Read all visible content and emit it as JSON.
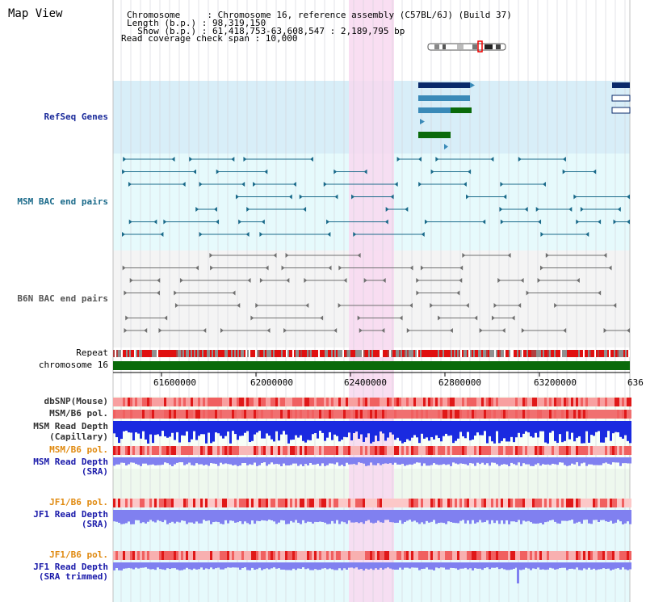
{
  "title": "Map View",
  "info": {
    "line1": "Chromosome     : Chromosome 16, reference assembly (C57BL/6J) (Build 37)",
    "line2": "Length (b.p.) : 98,319,150",
    "line3": "  Show (b.p.) : 61,418,753-63,608,547 : 2,189,795 bp",
    "line4": "Read coverage check span : 10,000"
  },
  "tracks": {
    "refseq": "RefSeq Genes",
    "msm_bac": "MSM BAC end pairs",
    "b6n_bac": "B6N BAC end pairs",
    "repeat": "Repeat",
    "chromosome": "chromosome 16",
    "dbsnp": "dbSNP(Mouse)",
    "msm_b6_pol_1": "MSM/B6 pol.",
    "msm_depth_cap_1": "MSM Read Depth",
    "msm_depth_cap_2": "(Capillary)",
    "msm_b6_pol_2": "MSM/B6 pol.",
    "msm_depth_sra_1": "MSM Read Depth",
    "msm_depth_sra_2": "(SRA)",
    "jf1_b6_pol_1": "JF1/B6 pol.",
    "jf1_depth_sra_1": "JF1 Read Depth",
    "jf1_depth_sra_2": "(SRA)",
    "jf1_b6_pol_2": "JF1/B6 pol.",
    "jf1_depth_trim_1": "JF1 Read Depth",
    "jf1_depth_trim_2": "(SRA trimmed)"
  },
  "axis": {
    "ticks": [
      "61600000",
      "62000000",
      "62400000",
      "62800000",
      "63200000",
      "636"
    ]
  },
  "colors": {
    "refseq_bg": "#d8eef8",
    "bac_bg": "#e6fafc",
    "highlight": "#f8d8f0",
    "gene_dark": "#0a2a6a",
    "gene_mid": "#3a8ab8",
    "gene_green": "#0a6a0a",
    "msm_line": "#1a6a8a",
    "b6n_line": "#707070",
    "chrom_green": "#0a6a0a",
    "depth_blue": "#1a2ae0",
    "depth_light": "#8080f0"
  }
}
